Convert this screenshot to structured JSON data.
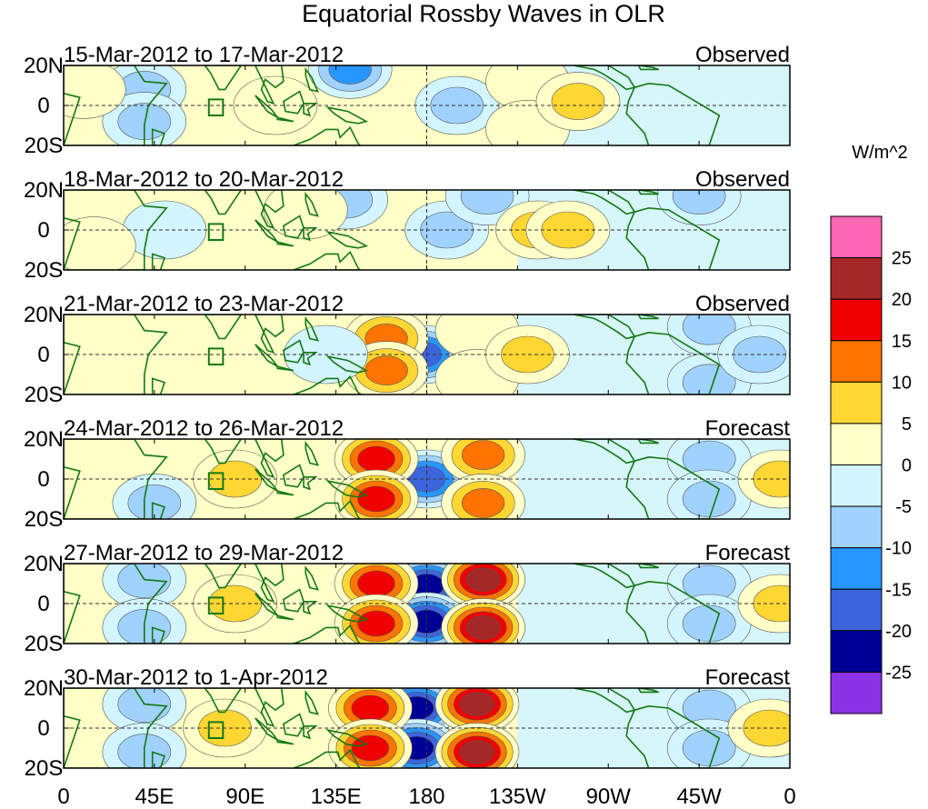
{
  "chart_data": {
    "type": "heatmap",
    "title": "Equatorial Rossby Waves in OLR",
    "units": "W/m^2",
    "panels": [
      {
        "period": "15-Mar-2012 to 17-Mar-2012",
        "kind": "Observed",
        "features": [
          {
            "lon": 195,
            "lat": 0,
            "value": -12
          },
          {
            "lon": 142,
            "lat": 18,
            "value": -14
          },
          {
            "lon": 40,
            "lat": 8,
            "value": -9
          },
          {
            "lon": 40,
            "lat": -8,
            "value": -9
          },
          {
            "lon": 105,
            "lat": 0,
            "value": 5
          },
          {
            "lon": 230,
            "lat": 12,
            "value": 7
          },
          {
            "lon": 230,
            "lat": -12,
            "value": 7
          },
          {
            "lon": 255,
            "lat": 2,
            "value": 12
          },
          {
            "lon": 10,
            "lat": 8,
            "value": 6
          }
        ]
      },
      {
        "period": "18-Mar-2012 to 20-Mar-2012",
        "kind": "Observed",
        "features": [
          {
            "lon": 190,
            "lat": 0,
            "value": -12
          },
          {
            "lon": 140,
            "lat": 15,
            "value": -10
          },
          {
            "lon": 210,
            "lat": 17,
            "value": -9
          },
          {
            "lon": 315,
            "lat": 17,
            "value": -9
          },
          {
            "lon": 235,
            "lat": 0,
            "value": 11
          },
          {
            "lon": 250,
            "lat": 0,
            "value": 8
          },
          {
            "lon": 120,
            "lat": 10,
            "value": 4
          },
          {
            "lon": 50,
            "lat": 0,
            "value": -7
          },
          {
            "lon": 15,
            "lat": -8,
            "value": 6
          }
        ]
      },
      {
        "period": "21-Mar-2012 to 23-Mar-2012",
        "kind": "Observed",
        "features": [
          {
            "lon": 178,
            "lat": 0,
            "value": -22
          },
          {
            "lon": 160,
            "lat": 8,
            "value": 13
          },
          {
            "lon": 160,
            "lat": -8,
            "value": 13
          },
          {
            "lon": 205,
            "lat": 12,
            "value": 7
          },
          {
            "lon": 205,
            "lat": -12,
            "value": 7
          },
          {
            "lon": 230,
            "lat": 0,
            "value": 8
          },
          {
            "lon": 320,
            "lat": 14,
            "value": -12
          },
          {
            "lon": 320,
            "lat": -14,
            "value": -10
          },
          {
            "lon": 345,
            "lat": 0,
            "value": -8
          },
          {
            "lon": 130,
            "lat": 0,
            "value": -6
          }
        ]
      },
      {
        "period": "24-Mar-2012 to 26-Mar-2012",
        "kind": "Forecast",
        "features": [
          {
            "lon": 180,
            "lat": 0,
            "value": -22
          },
          {
            "lon": 155,
            "lat": 10,
            "value": 18
          },
          {
            "lon": 155,
            "lat": -10,
            "value": 18
          },
          {
            "lon": 208,
            "lat": 12,
            "value": 16
          },
          {
            "lon": 208,
            "lat": -12,
            "value": 16
          },
          {
            "lon": 320,
            "lat": 10,
            "value": -12
          },
          {
            "lon": 320,
            "lat": -10,
            "value": -12
          },
          {
            "lon": 85,
            "lat": 0,
            "value": 8
          },
          {
            "lon": 355,
            "lat": 0,
            "value": 10
          },
          {
            "lon": 45,
            "lat": -12,
            "value": -8
          }
        ]
      },
      {
        "period": "27-Mar-2012 to 29-Mar-2012",
        "kind": "Forecast",
        "features": [
          {
            "lon": 180,
            "lat": 9,
            "value": -27
          },
          {
            "lon": 180,
            "lat": -9,
            "value": -27
          },
          {
            "lon": 155,
            "lat": 10,
            "value": 22
          },
          {
            "lon": 155,
            "lat": -10,
            "value": 22
          },
          {
            "lon": 208,
            "lat": 12,
            "value": 27
          },
          {
            "lon": 208,
            "lat": -12,
            "value": 27
          },
          {
            "lon": 320,
            "lat": 10,
            "value": -12
          },
          {
            "lon": 320,
            "lat": -10,
            "value": -12
          },
          {
            "lon": 85,
            "lat": 0,
            "value": 10
          },
          {
            "lon": 355,
            "lat": 0,
            "value": 12
          },
          {
            "lon": 40,
            "lat": 12,
            "value": -8
          },
          {
            "lon": 40,
            "lat": -12,
            "value": -8
          }
        ]
      },
      {
        "period": "30-Mar-2012 to 1-Apr-2012",
        "kind": "Forecast",
        "features": [
          {
            "lon": 175,
            "lat": 10,
            "value": -27
          },
          {
            "lon": 175,
            "lat": -10,
            "value": -27
          },
          {
            "lon": 152,
            "lat": 10,
            "value": 22
          },
          {
            "lon": 152,
            "lat": -10,
            "value": 22
          },
          {
            "lon": 205,
            "lat": 12,
            "value": 27
          },
          {
            "lon": 205,
            "lat": -12,
            "value": 27
          },
          {
            "lon": 320,
            "lat": 10,
            "value": -12
          },
          {
            "lon": 320,
            "lat": -10,
            "value": -12
          },
          {
            "lon": 80,
            "lat": 0,
            "value": 12
          },
          {
            "lon": 350,
            "lat": 0,
            "value": 12
          },
          {
            "lon": 40,
            "lat": 12,
            "value": -9
          },
          {
            "lon": 40,
            "lat": -12,
            "value": -9
          }
        ]
      }
    ],
    "x_ticks": [
      "0",
      "45E",
      "90E",
      "135E",
      "180",
      "135W",
      "90W",
      "45W",
      "0"
    ],
    "y_ticks": [
      "20N",
      "0",
      "20S"
    ],
    "xlim": [
      0,
      360
    ],
    "ylim": [
      -20,
      20
    ],
    "colorbar": {
      "levels": [
        -25,
        -20,
        -15,
        -10,
        -5,
        0,
        5,
        10,
        15,
        20,
        25
      ],
      "labels": [
        "25",
        "20",
        "15",
        "10",
        "5",
        "0",
        "-5",
        "-10",
        "-15",
        "-20",
        "-25"
      ],
      "colors": [
        "#FF66B4",
        "#A52828",
        "#F00000",
        "#FF7300",
        "#FFD733",
        "#FFFFC8",
        "#D2F5FF",
        "#A0D2FF",
        "#2896FF",
        "#3C64DC",
        "#000096",
        "#8C32E6"
      ]
    },
    "land_color": "#147814"
  }
}
